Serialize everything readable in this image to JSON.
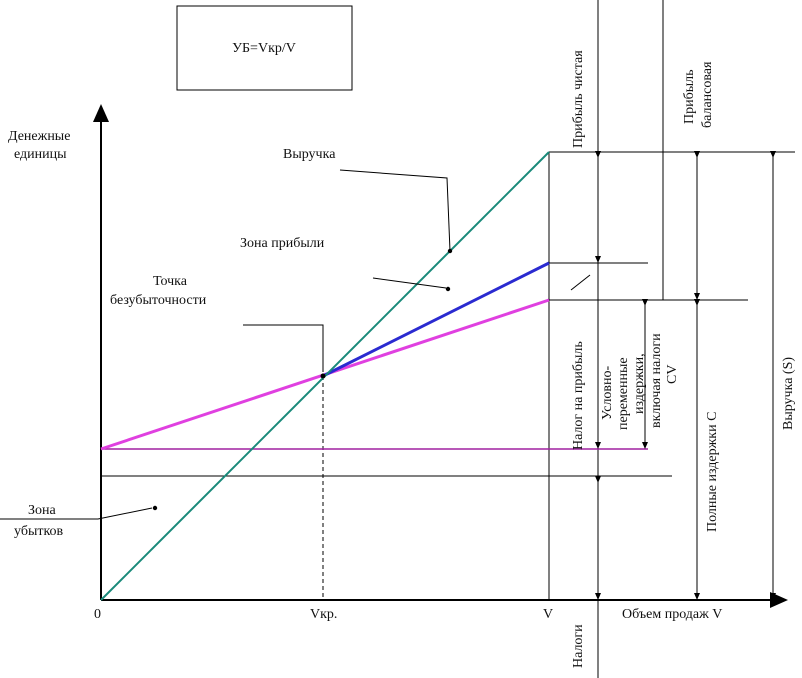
{
  "formula": "УБ=Vкр/V",
  "axes": {
    "y_label_line1": "Денежные",
    "y_label_line2": "единицы",
    "x_label": "Объем продаж V",
    "origin": "0",
    "v_critical": "Vкр.",
    "v": "V"
  },
  "labels": {
    "revenue": "Выручка",
    "profit_zone": "Зона прибыли",
    "breakeven_line1": "Точка",
    "breakeven_line2": "безубыточности",
    "loss_zone_line1": "Зона",
    "loss_zone_line2": "убытков"
  },
  "vertical_labels": {
    "net_profit": "Прибыль чистая",
    "balance_profit_line1": "Прибыль",
    "balance_profit_line2": "балансовая",
    "profit_tax": "Налог на прибыль",
    "variable_costs_line1": "Условно-",
    "variable_costs_line2": "переменные",
    "variable_costs_line3": "издержки,",
    "variable_costs_line4": "включая налоги",
    "variable_costs_line5": "CV",
    "full_costs": "Полные издержки C",
    "revenue_s": "Выручка (S)",
    "taxes": "Налоги"
  },
  "colors": {
    "revenue_line": "#1a8a7a",
    "profit_line": "#2a2ad0",
    "cost_line": "#e040e0",
    "fixed_line": "#a020a0",
    "axis": "#000000"
  }
}
